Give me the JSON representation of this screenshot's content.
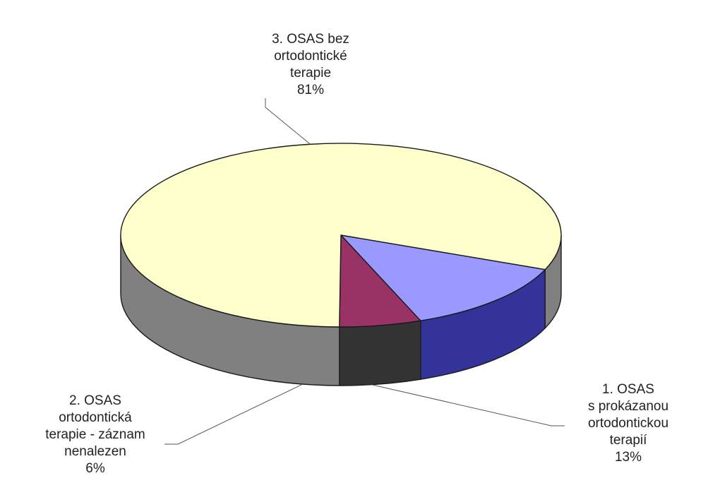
{
  "chart_data": {
    "type": "pie",
    "style": "3d",
    "slices": [
      {
        "label_lines": [
          "1. OSAS",
          "s prokázanou",
          "ortodontickou",
          "terapií"
        ],
        "value": 13,
        "percent_label": "13%",
        "color_top": "#9999FF",
        "color_side": "#333399"
      },
      {
        "label_lines": [
          "2. OSAS",
          "ortodontická",
          "terapie - záznam",
          "nenalezen"
        ],
        "value": 6,
        "percent_label": "6%",
        "color_top": "#993366",
        "color_side": "#333333"
      },
      {
        "label_lines": [
          "3. OSAS bez",
          "ortodontické",
          "terapie"
        ],
        "value": 81,
        "percent_label": "81%",
        "color_top": "#FFFFCC",
        "color_side": "#808080"
      }
    ]
  }
}
